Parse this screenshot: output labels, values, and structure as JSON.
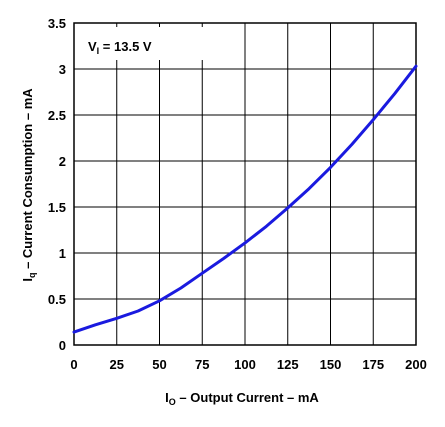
{
  "chart_data": {
    "type": "line",
    "xlim": [
      0,
      200
    ],
    "ylim": [
      0,
      3.5
    ],
    "x_ticks": [
      "0",
      "25",
      "50",
      "75",
      "100",
      "125",
      "150",
      "175",
      "200"
    ],
    "y_ticks": [
      "0",
      "0.5",
      "1",
      "1.5",
      "2",
      "2.5",
      "3",
      "3.5"
    ],
    "grid": true,
    "xlabel": {
      "main": "I",
      "sub": "O",
      "rest": " – Output Current – mA"
    },
    "ylabel": {
      "main": "I",
      "sub": "q",
      "rest": " – Current Consumption – mA"
    },
    "annotation": {
      "main": "V",
      "sub": "I",
      "rest": " = 13.5 V"
    },
    "series": [
      {
        "color": "#1a1adf",
        "x": [
          0,
          12.5,
          25,
          37.5,
          50,
          62.5,
          75,
          87.5,
          100,
          112.5,
          125,
          137.5,
          150,
          162.5,
          175,
          187.5,
          200
        ],
        "y": [
          0.14,
          0.22,
          0.29,
          0.37,
          0.48,
          0.62,
          0.78,
          0.94,
          1.11,
          1.29,
          1.49,
          1.7,
          1.93,
          2.18,
          2.45,
          2.73,
          3.03
        ]
      }
    ]
  }
}
